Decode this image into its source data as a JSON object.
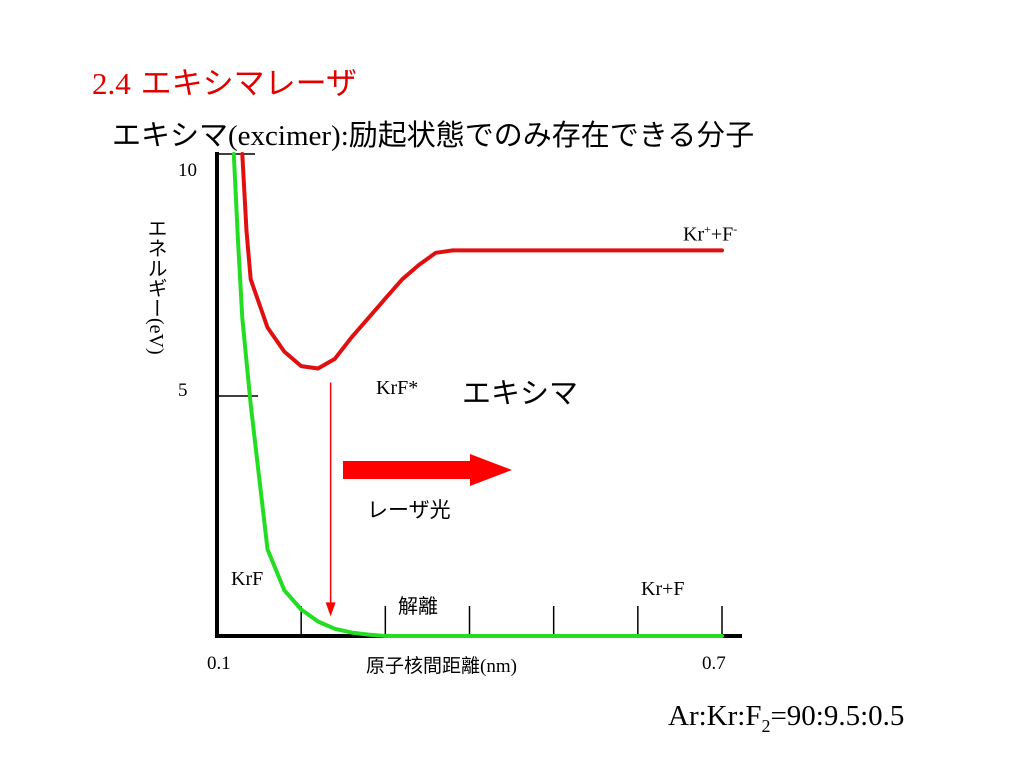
{
  "slide": {
    "title_number": "2.4",
    "title_text": "エキシマレーザ",
    "subtitle_prefix": "エキシマ",
    "subtitle_paren": "(excimer)",
    "subtitle_colon": ":",
    "subtitle_text": "励起状態でのみ存在できる分子",
    "ratio_base": "Ar:Kr:F",
    "ratio_sub": "2",
    "ratio_tail": "=90:9.5:0.5"
  },
  "chart_data": {
    "type": "line",
    "ylabel_main": "エネルギー",
    "ylabel_unit": "(eV)",
    "xlabel_main": "原子核間距離",
    "xlabel_unit": "(nm)",
    "y_ticks": [
      "10",
      "5"
    ],
    "x_ticks": [
      "0.1",
      "0.7"
    ],
    "xlim": [
      0.1,
      0.7
    ],
    "ylim": [
      0,
      10
    ],
    "colors": {
      "upper": "#e01010",
      "lower": "#22dd22",
      "arrow": "#ff0000"
    },
    "series": [
      {
        "name": "KrF*",
        "color": "#e01010",
        "x": [
          0.13,
          0.135,
          0.14,
          0.15,
          0.16,
          0.18,
          0.2,
          0.22,
          0.24,
          0.26,
          0.28,
          0.3,
          0.32,
          0.34,
          0.36,
          0.38,
          0.4,
          0.45,
          0.5,
          0.55,
          0.6,
          0.65,
          0.7
        ],
        "y": [
          10.0,
          8.4,
          7.4,
          6.9,
          6.4,
          5.9,
          5.6,
          5.55,
          5.75,
          6.2,
          6.6,
          7.0,
          7.4,
          7.7,
          7.95,
          8.0,
          8.0,
          8.0,
          8.0,
          8.0,
          8.0,
          8.0,
          8.0
        ]
      },
      {
        "name": "KrF",
        "color": "#22dd22",
        "x": [
          0.12,
          0.125,
          0.13,
          0.14,
          0.15,
          0.16,
          0.18,
          0.2,
          0.22,
          0.24,
          0.26,
          0.28,
          0.3,
          0.34,
          0.4,
          0.5,
          0.6,
          0.7
        ],
        "y": [
          10.0,
          8.2,
          6.6,
          4.8,
          3.3,
          1.8,
          0.95,
          0.55,
          0.3,
          0.15,
          0.07,
          0.03,
          0.0,
          0.0,
          0.0,
          0.0,
          0.0,
          0.0
        ]
      }
    ],
    "annotations": {
      "upper_asymptote": "Kr",
      "upper_asymptote_plus": "+",
      "upper_asymptote_mid": "+F",
      "upper_asymptote_minus": "-",
      "excited_label": "KrF*",
      "excimer_label": "エキシマ",
      "laser_label": "レーザ光",
      "ground_label": "KrF",
      "dissociation_label": "解離",
      "ground_asymptote": "Kr+F"
    },
    "transition": {
      "x": 0.235,
      "y_from": 5.55,
      "y_to": 0.2
    }
  }
}
